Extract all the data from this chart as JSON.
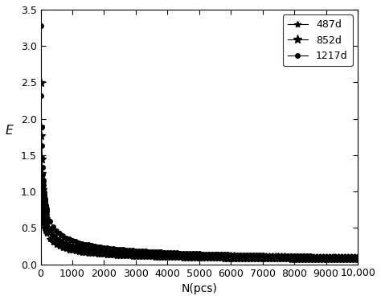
{
  "title": "",
  "xlabel": "N(pcs)",
  "ylabel": "E",
  "xlim": [
    0,
    10000
  ],
  "ylim": [
    0,
    3.5
  ],
  "xticks": [
    0,
    1000,
    2000,
    3000,
    4000,
    5000,
    6000,
    7000,
    8000,
    9000,
    10000
  ],
  "yticks": [
    0,
    0.5,
    1.0,
    1.5,
    2.0,
    2.5,
    3.0,
    3.5
  ],
  "series": [
    {
      "label": "487d",
      "marker": "*",
      "A": 6.0,
      "color": "black",
      "ms": 6,
      "markevery": 1
    },
    {
      "label": "852d",
      "marker": "*",
      "A": 7.9,
      "color": "black",
      "ms": 8,
      "markevery": 1
    },
    {
      "label": "1217d",
      "marker": "o",
      "A": 10.35,
      "color": "black",
      "ms": 4,
      "markevery": 1
    }
  ],
  "N_start": 10,
  "N_end": 10000,
  "N_step": 10,
  "dense_N_start": 10,
  "dense_N_end": 200,
  "dense_N_step": 10,
  "sparse_N_start": 200,
  "sparse_N_end": 10000,
  "sparse_N_step": 100,
  "background_color": "#ffffff"
}
